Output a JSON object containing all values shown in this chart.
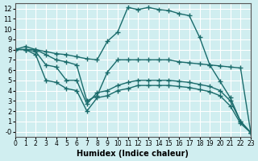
{
  "xlabel": "Humidex (Indice chaleur)",
  "ylabel": "",
  "bg_color": "#d0eef0",
  "grid_color": "#ffffff",
  "line_color": "#1a6b6b",
  "xlim": [
    0,
    23
  ],
  "ylim": [
    -0.5,
    12.5
  ],
  "xticks": [
    0,
    1,
    2,
    3,
    4,
    5,
    6,
    7,
    8,
    9,
    10,
    11,
    12,
    13,
    14,
    15,
    16,
    17,
    18,
    19,
    20,
    21,
    22,
    23
  ],
  "yticks": [
    0,
    1,
    2,
    3,
    4,
    5,
    6,
    7,
    8,
    9,
    10,
    11,
    12
  ],
  "line1_x": [
    0,
    1,
    2,
    3,
    4,
    5,
    6,
    7,
    8,
    9,
    10,
    11,
    12,
    13,
    14,
    15,
    16,
    17,
    18,
    19,
    20,
    21,
    22,
    23
  ],
  "line1_y": [
    8.0,
    8.3,
    8.0,
    7.8,
    7.6,
    7.5,
    7.3,
    7.1,
    7.0,
    8.8,
    9.7,
    12.1,
    11.9,
    12.1,
    11.9,
    11.8,
    11.5,
    11.3,
    9.2,
    6.5,
    4.9,
    3.3,
    1.0,
    -0.1
  ],
  "line2_x": [
    0,
    1,
    2,
    3,
    4,
    5,
    6,
    7,
    8,
    9,
    10,
    11,
    12,
    13,
    14,
    15,
    16,
    17,
    18,
    19,
    20,
    21,
    22,
    23
  ],
  "line2_y": [
    8.0,
    8.0,
    8.0,
    7.5,
    7.0,
    6.8,
    6.5,
    3.0,
    3.5,
    5.8,
    7.0,
    7.0,
    7.0,
    7.0,
    7.0,
    7.0,
    6.8,
    6.7,
    6.6,
    6.5,
    6.4,
    6.3,
    6.2,
    -0.1
  ],
  "line3_x": [
    0,
    1,
    2,
    3,
    4,
    5,
    6,
    7,
    8,
    9,
    10,
    11,
    12,
    13,
    14,
    15,
    16,
    17,
    18,
    19,
    20,
    21,
    22,
    23
  ],
  "line3_y": [
    8.0,
    8.0,
    7.8,
    6.5,
    6.3,
    5.0,
    5.0,
    2.7,
    3.8,
    4.0,
    4.5,
    4.8,
    5.0,
    5.0,
    5.0,
    5.0,
    4.9,
    4.8,
    4.6,
    4.4,
    4.0,
    3.0,
    1.0,
    -0.1
  ],
  "line4_x": [
    0,
    1,
    2,
    3,
    4,
    5,
    6,
    7,
    8,
    9,
    10,
    11,
    12,
    13,
    14,
    15,
    16,
    17,
    18,
    19,
    20,
    21,
    22,
    23
  ],
  "line4_y": [
    8.0,
    8.0,
    7.5,
    5.0,
    4.8,
    4.2,
    4.0,
    2.0,
    3.3,
    3.5,
    4.0,
    4.2,
    4.5,
    4.5,
    4.5,
    4.5,
    4.4,
    4.3,
    4.1,
    3.9,
    3.5,
    2.5,
    0.8,
    -0.1
  ]
}
